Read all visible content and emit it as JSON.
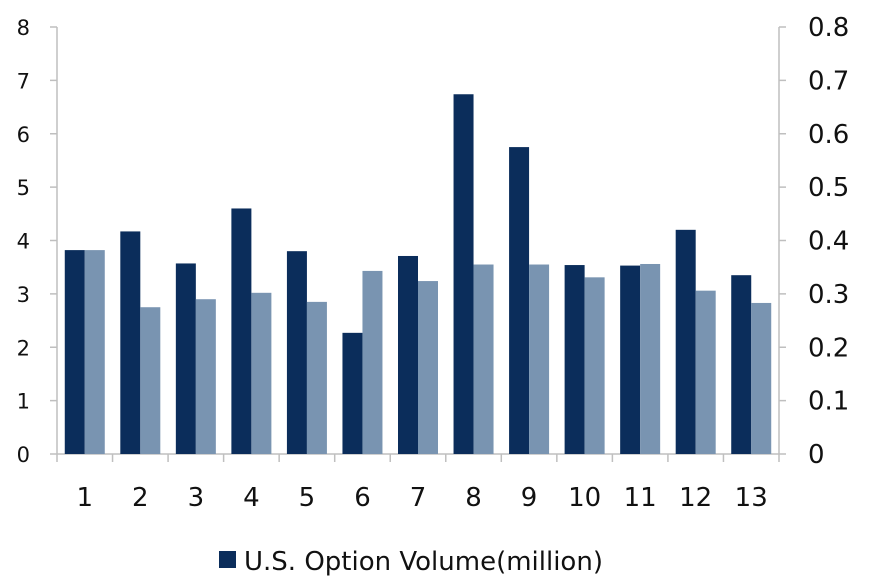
{
  "chart_data": {
    "type": "bar",
    "categories": [
      "1",
      "2",
      "3",
      "4",
      "5",
      "6",
      "7",
      "8",
      "9",
      "10",
      "11",
      "12",
      "13"
    ],
    "series": [
      {
        "name": "U.S. Option Volume(million)",
        "axis": "left",
        "color": "#0b2d5b",
        "values": [
          3.82,
          4.17,
          3.57,
          4.6,
          3.8,
          2.27,
          3.71,
          6.74,
          5.75,
          3.54,
          3.53,
          4.2,
          3.35
        ]
      },
      {
        "name": "",
        "axis": "right",
        "color": "#7994b1",
        "values": [
          0.382,
          0.275,
          0.29,
          0.302,
          0.285,
          0.343,
          0.324,
          0.355,
          0.355,
          0.331,
          0.356,
          0.306,
          0.283
        ]
      }
    ],
    "y_ticks": [
      "0",
      "1",
      "2",
      "3",
      "4",
      "5",
      "6",
      "7",
      "8"
    ],
    "y2_ticks": [
      "0",
      "0.1",
      "0.2",
      "0.3",
      "0.4",
      "0.5",
      "0.6",
      "0.7",
      "0.8"
    ],
    "ylim": [
      0,
      8
    ],
    "y2lim": [
      0,
      0.8
    ],
    "grid": false,
    "legend_position": "bottom-center",
    "axis_color": "#bfbfbf"
  }
}
